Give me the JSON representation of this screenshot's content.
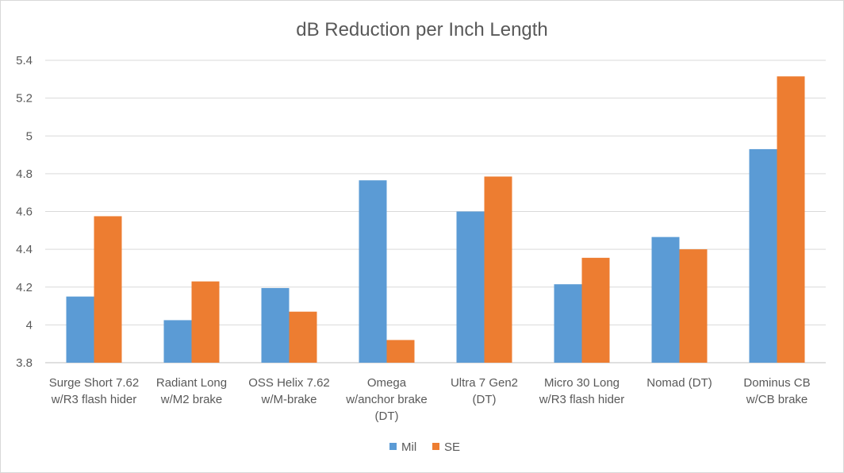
{
  "chart_data": {
    "type": "bar",
    "title": "dB Reduction per Inch Length",
    "xlabel": "",
    "ylabel": "",
    "categories": [
      [
        "Surge Short 7.62",
        "w/R3 flash hider"
      ],
      [
        "Radiant Long",
        "w/M2 brake"
      ],
      [
        "OSS Helix 7.62",
        "w/M-brake"
      ],
      [
        "Omega",
        "w/anchor brake",
        "(DT)"
      ],
      [
        "Ultra 7 Gen2",
        "(DT)"
      ],
      [
        "Micro 30 Long",
        "w/R3 flash hider"
      ],
      [
        "Nomad (DT)"
      ],
      [
        "Dominus CB",
        "w/CB brake"
      ]
    ],
    "series": [
      {
        "name": "Mil",
        "color": "#5b9bd5",
        "values": [
          4.15,
          4.025,
          4.195,
          4.765,
          4.6,
          4.215,
          4.465,
          4.93
        ]
      },
      {
        "name": "SE",
        "color": "#ed7d31",
        "values": [
          4.575,
          4.23,
          4.07,
          3.92,
          4.785,
          4.355,
          4.4,
          5.315
        ]
      }
    ],
    "ylim": [
      3.8,
      5.4
    ],
    "yticks": [
      "3.8",
      "4",
      "4.2",
      "4.4",
      "4.6",
      "4.8",
      "5",
      "5.2",
      "5.4"
    ],
    "grid": true,
    "legend_position": "bottom"
  }
}
